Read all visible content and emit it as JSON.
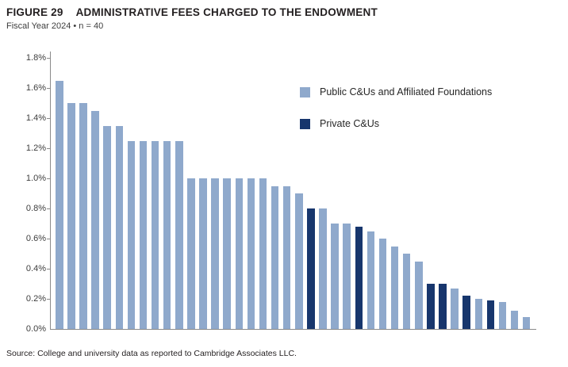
{
  "header": {
    "figure_label": "FIGURE 29",
    "title": "ADMINISTRATIVE FEES CHARGED TO THE ENDOWMENT",
    "subtitle": "Fiscal Year 2024 • n = 40"
  },
  "legend": [
    {
      "label": "Public C&Us and Affiliated Foundations",
      "color": "#8FA9CC",
      "group": "public"
    },
    {
      "label": "Private C&Us",
      "color": "#17366D",
      "group": "private"
    }
  ],
  "source": "Source: College and university data as reported to Cambridge Associates LLC.",
  "chart_data": {
    "type": "bar",
    "title": "FIGURE 29  ADMINISTRATIVE FEES CHARGED TO THE ENDOWMENT",
    "subtitle": "Fiscal Year 2024 • n = 40",
    "xlabel": "",
    "ylabel": "",
    "unit": "percent",
    "ylim": [
      0,
      1.8
    ],
    "ytick_step": 0.2,
    "ytick_labels": [
      "0.0%",
      "0.2%",
      "0.4%",
      "0.6%",
      "0.8%",
      "1.0%",
      "1.2%",
      "1.4%",
      "1.6%",
      "1.8%"
    ],
    "grid": false,
    "legend_position": "inside-upper-right",
    "x_categories_note": "40 individual institutions, unlabeled, sorted descending by fee",
    "series_colors": {
      "public": "#8FA9CC",
      "private": "#17366D"
    },
    "bars": [
      {
        "value": 1.65,
        "group": "public"
      },
      {
        "value": 1.5,
        "group": "public"
      },
      {
        "value": 1.5,
        "group": "public"
      },
      {
        "value": 1.45,
        "group": "public"
      },
      {
        "value": 1.35,
        "group": "public"
      },
      {
        "value": 1.35,
        "group": "public"
      },
      {
        "value": 1.25,
        "group": "public"
      },
      {
        "value": 1.25,
        "group": "public"
      },
      {
        "value": 1.25,
        "group": "public"
      },
      {
        "value": 1.25,
        "group": "public"
      },
      {
        "value": 1.25,
        "group": "public"
      },
      {
        "value": 1.0,
        "group": "public"
      },
      {
        "value": 1.0,
        "group": "public"
      },
      {
        "value": 1.0,
        "group": "public"
      },
      {
        "value": 1.0,
        "group": "public"
      },
      {
        "value": 1.0,
        "group": "public"
      },
      {
        "value": 1.0,
        "group": "public"
      },
      {
        "value": 1.0,
        "group": "public"
      },
      {
        "value": 0.95,
        "group": "public"
      },
      {
        "value": 0.95,
        "group": "public"
      },
      {
        "value": 0.9,
        "group": "public"
      },
      {
        "value": 0.8,
        "group": "private"
      },
      {
        "value": 0.8,
        "group": "public"
      },
      {
        "value": 0.7,
        "group": "public"
      },
      {
        "value": 0.7,
        "group": "public"
      },
      {
        "value": 0.68,
        "group": "private"
      },
      {
        "value": 0.65,
        "group": "public"
      },
      {
        "value": 0.6,
        "group": "public"
      },
      {
        "value": 0.55,
        "group": "public"
      },
      {
        "value": 0.5,
        "group": "public"
      },
      {
        "value": 0.45,
        "group": "public"
      },
      {
        "value": 0.3,
        "group": "private"
      },
      {
        "value": 0.3,
        "group": "private"
      },
      {
        "value": 0.27,
        "group": "public"
      },
      {
        "value": 0.22,
        "group": "private"
      },
      {
        "value": 0.2,
        "group": "public"
      },
      {
        "value": 0.19,
        "group": "private"
      },
      {
        "value": 0.18,
        "group": "public"
      },
      {
        "value": 0.12,
        "group": "public"
      },
      {
        "value": 0.08,
        "group": "public"
      }
    ]
  }
}
